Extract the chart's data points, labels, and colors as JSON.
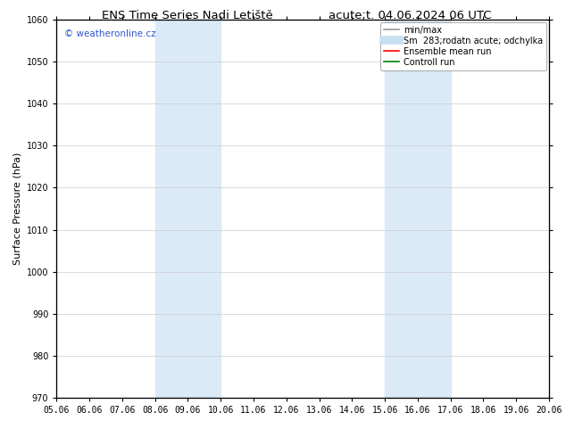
{
  "title_left": "ENS Time Series Nadi Letiště",
  "title_right": "acute;t. 04.06.2024 06 UTC",
  "ylabel": "Surface Pressure (hPa)",
  "ylim": [
    970,
    1060
  ],
  "yticks": [
    970,
    980,
    990,
    1000,
    1010,
    1020,
    1030,
    1040,
    1050,
    1060
  ],
  "xtick_labels": [
    "05.06",
    "06.06",
    "07.06",
    "08.06",
    "09.06",
    "10.06",
    "11.06",
    "12.06",
    "13.06",
    "14.06",
    "15.06",
    "16.06",
    "17.06",
    "18.06",
    "19.06",
    "20.06"
  ],
  "shaded_bands": [
    {
      "xstart": 3,
      "xend": 5
    },
    {
      "xstart": 10,
      "xend": 12
    }
  ],
  "shaded_color": "#daeaf7",
  "watermark_text": "© weatheronline.cz",
  "watermark_color": "#3355cc",
  "legend_entries": [
    {
      "label": "min/max",
      "color": "#999999",
      "lw": 1.2,
      "linestyle": "-"
    },
    {
      "label": "Sm  283;rodatn acute; odchylka",
      "color": "#c8dff0",
      "lw": 7,
      "linestyle": "-"
    },
    {
      "label": "Ensemble mean run",
      "color": "red",
      "lw": 1.2,
      "linestyle": "-"
    },
    {
      "label": "Controll run",
      "color": "green",
      "lw": 1.2,
      "linestyle": "-"
    }
  ],
  "bg_color": "#ffffff",
  "grid_color": "#cccccc",
  "title_fontsize": 9.5,
  "tick_fontsize": 7,
  "ylabel_fontsize": 8,
  "legend_fontsize": 7,
  "watermark_fontsize": 7.5
}
